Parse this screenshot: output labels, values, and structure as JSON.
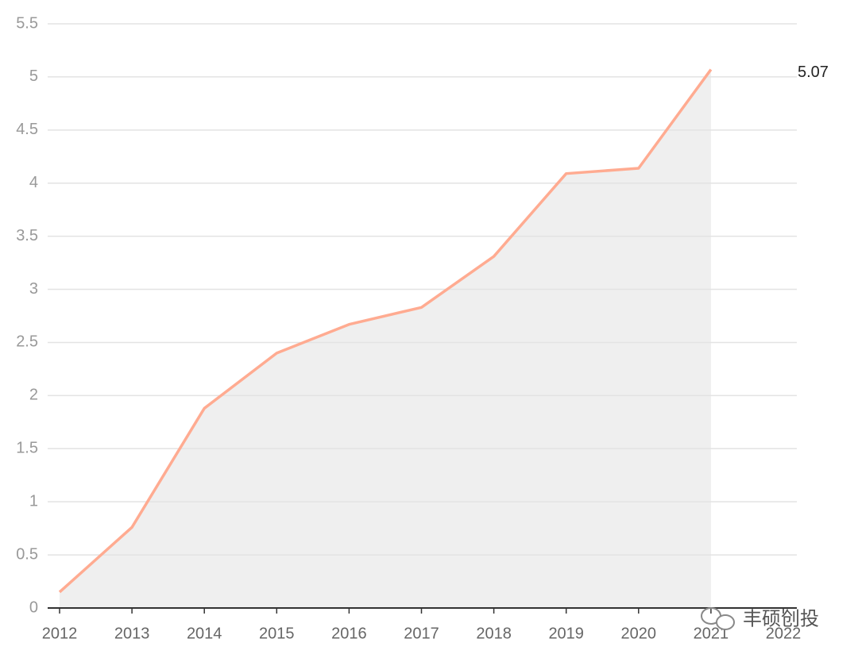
{
  "chart_data": {
    "type": "area",
    "categories": [
      "2012",
      "2013",
      "2014",
      "2015",
      "2016",
      "2017",
      "2018",
      "2019",
      "2020",
      "2021",
      "2022"
    ],
    "series": [
      {
        "color": "#ffab91",
        "values": [
          0.15,
          0.76,
          1.88,
          2.4,
          2.67,
          2.83,
          3.31,
          4.09,
          4.14,
          5.07,
          null
        ]
      }
    ],
    "area_color": "#efefef",
    "ylim": [
      0,
      5.5
    ],
    "yticks": [
      0,
      0.5,
      1,
      1.5,
      2,
      2.5,
      3,
      3.5,
      4,
      4.5,
      5,
      5.5
    ],
    "grid": true,
    "watermark": "丰硕创投"
  }
}
